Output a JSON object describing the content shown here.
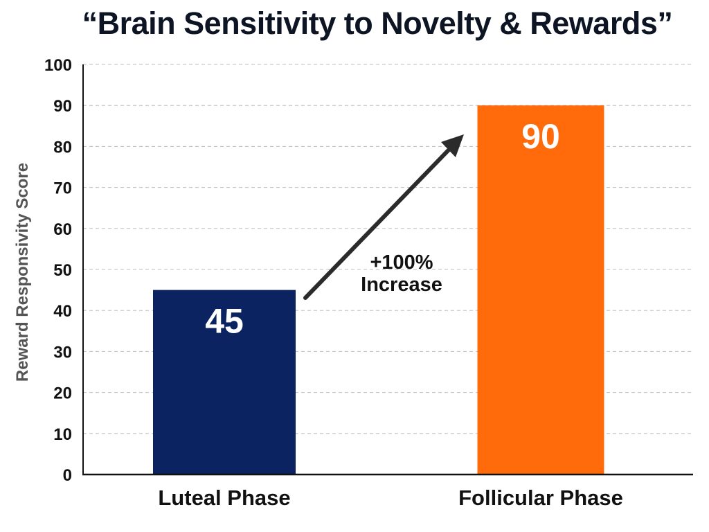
{
  "chart_data": {
    "type": "bar",
    "title": "“Brain Sensitivity to Novelty & Rewards”",
    "xlabel": "",
    "ylabel": "Reward Responsivity Score",
    "categories": [
      "Luteal Phase",
      "Follicular Phase"
    ],
    "values": [
      45,
      90
    ],
    "data_labels": [
      "45",
      "90"
    ],
    "colors": [
      "#0b2361",
      "#ff6a0a"
    ],
    "ylim": [
      0,
      100
    ],
    "yticks": [
      0,
      10,
      20,
      30,
      40,
      50,
      60,
      70,
      80,
      90,
      100
    ],
    "grid": true,
    "annotation": {
      "line1": "+100%",
      "line2": "Increase",
      "arrow_from": "Luteal Phase",
      "arrow_to": "Follicular Phase"
    }
  }
}
